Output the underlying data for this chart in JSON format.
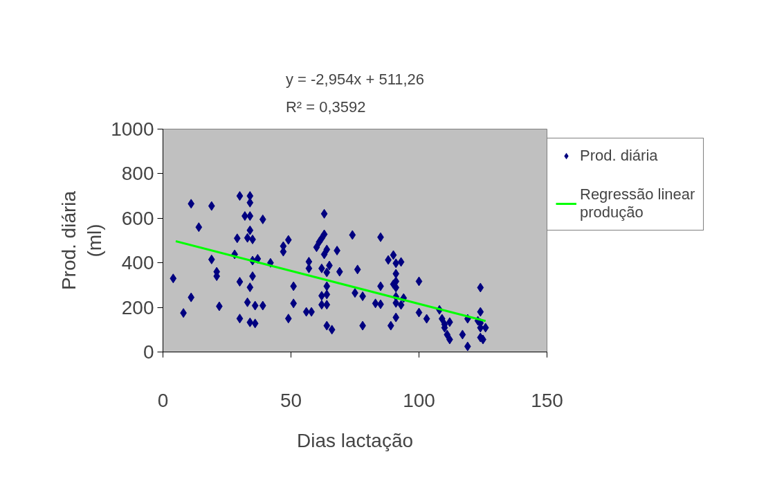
{
  "chart_data": {
    "type": "scatter",
    "annotations": [
      "y = -2,954x + 511,26",
      "R² = 0,3592"
    ],
    "xlabel": "Dias lactação",
    "ylabel": "Prod. diária (ml)",
    "xlim": [
      0,
      150
    ],
    "xticks": [
      0,
      50,
      100,
      150
    ],
    "ylim": [
      0,
      1000
    ],
    "yticks": [
      0,
      200,
      400,
      600,
      800,
      1000
    ],
    "grid": false,
    "legend": "right",
    "series": [
      {
        "name": "Prod. diária",
        "color": "#000080",
        "marker": "diamond",
        "x": [
          4,
          8,
          11,
          11,
          14,
          19,
          19,
          21,
          21,
          22,
          30,
          28,
          29,
          30,
          30,
          32,
          33,
          33,
          34,
          34,
          34,
          35,
          35,
          35,
          34,
          36,
          34,
          36,
          39,
          39,
          34,
          37,
          42,
          47,
          47,
          49,
          49,
          51,
          51,
          56,
          58,
          57,
          57,
          60,
          61,
          63,
          63,
          62,
          64,
          62,
          63,
          64,
          65,
          64,
          64,
          62,
          62,
          64,
          64,
          66,
          68,
          69,
          74,
          76,
          75,
          78,
          78,
          85,
          85,
          83,
          85,
          88,
          90,
          91,
          93,
          91,
          91,
          90,
          91,
          91,
          91,
          93,
          89,
          91,
          94,
          100,
          100,
          103,
          108,
          109,
          110,
          110,
          111,
          117,
          119,
          119,
          124,
          124,
          123,
          124,
          124,
          126,
          125,
          124,
          112,
          112
        ],
        "values": [
          330,
          175,
          665,
          245,
          560,
          655,
          415,
          340,
          360,
          205,
          700,
          438,
          510,
          315,
          150,
          610,
          512,
          223,
          700,
          670,
          610,
          505,
          410,
          340,
          290,
          208,
          133,
          128,
          595,
          208,
          546,
          418,
          400,
          475,
          450,
          503,
          150,
          295,
          218,
          180,
          180,
          405,
          375,
          470,
          493,
          620,
          528,
          510,
          460,
          375,
          438,
          357,
          388,
          295,
          258,
          252,
          212,
          212,
          118,
          100,
          455,
          360,
          525,
          370,
          265,
          250,
          118,
          515,
          295,
          218,
          214,
          413,
          435,
          398,
          404,
          351,
          317,
          304,
          289,
          248,
          220,
          211,
          118,
          155,
          242,
          317,
          177,
          149,
          189,
          149,
          124,
          109,
          78,
          78,
          149,
          25,
          289,
          180,
          140,
          130,
          109,
          109,
          56,
          65,
          56,
          134
        ]
      },
      {
        "name": "Regressão linear produção",
        "color": "#00ff00",
        "type": "line",
        "line_style": "solid",
        "x": [
          5,
          126
        ],
        "values": [
          497,
          139
        ]
      }
    ]
  }
}
